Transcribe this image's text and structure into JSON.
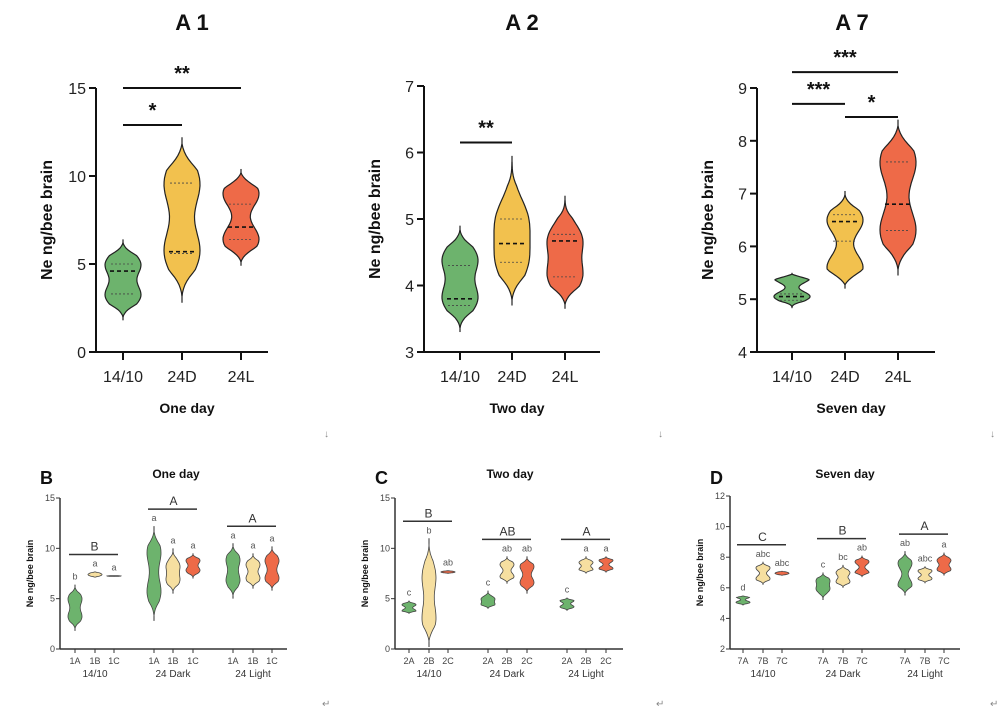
{
  "colors": {
    "green": "#6db36d",
    "yellow": "#f2c14e",
    "red": "#ee6a48",
    "cream": "#f6dfa0",
    "axis": "#111111"
  },
  "chart_data": [
    {
      "id": "A1",
      "type": "violin",
      "title": "A 1",
      "xlabel": "One day",
      "ylabel": "Ne ng/bee brain",
      "ylim": [
        0,
        15
      ],
      "yticks": [
        0,
        5,
        10,
        15
      ],
      "categories": [
        "14/10",
        "24D",
        "24L"
      ],
      "series": [
        {
          "name": "14/10",
          "color": "green",
          "min": 1.8,
          "max": 6.4,
          "median": 4.6,
          "q1": 3.3,
          "q3": 5.0,
          "modes": [
            3.2,
            5.0
          ]
        },
        {
          "name": "24D",
          "color": "yellow",
          "min": 2.8,
          "max": 12.2,
          "median": 5.7,
          "q1": 5.6,
          "q3": 9.6,
          "modes": [
            5.7,
            9.6
          ]
        },
        {
          "name": "24L",
          "color": "red",
          "min": 4.9,
          "max": 10.4,
          "median": 7.1,
          "q1": 6.4,
          "q3": 8.4,
          "modes": [
            6.4,
            9.0
          ]
        }
      ],
      "significance": [
        {
          "from": "14/10",
          "to": "24D",
          "label": "*",
          "y": 12.9
        },
        {
          "from": "14/10",
          "to": "24L",
          "label": "**",
          "y": 15.0
        }
      ]
    },
    {
      "id": "A2",
      "type": "violin",
      "title": "A 2",
      "xlabel": "Two day",
      "ylabel": "Ne ng/bee brain",
      "ylim": [
        3,
        7
      ],
      "yticks": [
        3,
        4,
        5,
        6,
        7
      ],
      "categories": [
        "14/10",
        "24D",
        "24L"
      ],
      "series": [
        {
          "name": "14/10",
          "color": "green",
          "min": 3.3,
          "max": 4.9,
          "median": 3.8,
          "q1": 3.7,
          "q3": 4.3,
          "modes": [
            3.8,
            4.4
          ]
        },
        {
          "name": "24D",
          "color": "yellow",
          "min": 3.7,
          "max": 5.95,
          "median": 4.63,
          "q1": 4.35,
          "q3": 5.0,
          "modes": [
            4.35,
            5.0
          ]
        },
        {
          "name": "24L",
          "color": "red",
          "min": 3.65,
          "max": 5.35,
          "median": 4.67,
          "q1": 4.13,
          "q3": 4.77,
          "modes": [
            4.13,
            4.7
          ]
        }
      ],
      "significance": [
        {
          "from": "14/10",
          "to": "24D",
          "label": "**",
          "y": 6.15
        }
      ]
    },
    {
      "id": "A7",
      "type": "violin",
      "title": "A 7",
      "xlabel": "Seven day",
      "ylabel": "Ne ng/bee brain",
      "ylim": [
        4,
        9
      ],
      "yticks": [
        4,
        5,
        6,
        7,
        8,
        9
      ],
      "categories": [
        "14/10",
        "24D",
        "24L"
      ],
      "series": [
        {
          "name": "14/10",
          "color": "green",
          "min": 4.83,
          "max": 5.5,
          "median": 5.05,
          "q1": 4.98,
          "q3": 5.1,
          "modes": [
            5.05,
            5.4
          ]
        },
        {
          "name": "24D",
          "color": "yellow",
          "min": 5.2,
          "max": 7.05,
          "median": 6.47,
          "q1": 6.1,
          "q3": 6.6,
          "modes": [
            5.6,
            6.5
          ]
        },
        {
          "name": "24L",
          "color": "red",
          "min": 5.45,
          "max": 8.4,
          "median": 6.8,
          "q1": 6.3,
          "q3": 7.6,
          "modes": [
            6.3,
            7.6
          ]
        }
      ],
      "significance": [
        {
          "from": "14/10",
          "to": "24L",
          "label": "***",
          "y": 9.3
        },
        {
          "from": "14/10",
          "to": "24D",
          "label": "***",
          "y": 8.7
        },
        {
          "from": "24D",
          "to": "24L",
          "label": "*",
          "y": 8.45
        }
      ]
    },
    {
      "id": "B",
      "type": "violin",
      "panel_label": "B",
      "title": "One day",
      "ylabel": "Ne ng/bee brain",
      "ylim": [
        0,
        15
      ],
      "yticks": [
        0,
        5,
        10,
        15
      ],
      "groups": [
        {
          "name": "14/10",
          "group_letter": "B",
          "items": [
            {
              "name": "1A",
              "color": "green",
              "letter": "b",
              "min": 1.8,
              "max": 6.4,
              "modes": [
                3.2,
                5.0
              ]
            },
            {
              "name": "1B",
              "color": "cream",
              "letter": "a",
              "min": 7.1,
              "max": 7.7,
              "modes": [
                7.4
              ]
            },
            {
              "name": "1C",
              "color": "red",
              "letter": "a",
              "min": 7.2,
              "max": 7.3,
              "modes": [
                7.25
              ]
            }
          ]
        },
        {
          "name": "24 Dark",
          "group_letter": "A",
          "items": [
            {
              "name": "1A",
              "color": "green",
              "letter": "a",
              "min": 2.8,
              "max": 12.2,
              "modes": [
                5.7,
                9.6
              ]
            },
            {
              "name": "1B",
              "color": "cream",
              "letter": "a",
              "min": 5.5,
              "max": 10.0,
              "modes": [
                6.8,
                8.3
              ]
            },
            {
              "name": "1C",
              "color": "red",
              "letter": "a",
              "min": 7.0,
              "max": 9.5,
              "modes": [
                7.8,
                8.8
              ]
            }
          ]
        },
        {
          "name": "24 Light",
          "group_letter": "A",
          "items": [
            {
              "name": "1A",
              "color": "green",
              "letter": "a",
              "min": 5.0,
              "max": 10.5,
              "modes": [
                6.8,
                8.9
              ]
            },
            {
              "name": "1B",
              "color": "cream",
              "letter": "a",
              "min": 6.0,
              "max": 9.5,
              "modes": [
                7.0,
                8.4
              ]
            },
            {
              "name": "1C",
              "color": "red",
              "letter": "a",
              "min": 5.8,
              "max": 10.2,
              "modes": [
                7.0,
                8.8
              ]
            }
          ]
        }
      ]
    },
    {
      "id": "C",
      "type": "violin",
      "panel_label": "C",
      "title": "Two day",
      "ylabel": "Ne ng/bee brain",
      "ylim": [
        0,
        15
      ],
      "yticks": [
        0,
        5,
        10,
        15
      ],
      "groups": [
        {
          "name": "14/10",
          "group_letter": "B",
          "items": [
            {
              "name": "2A",
              "color": "green",
              "letter": "c",
              "min": 3.5,
              "max": 4.8,
              "modes": [
                3.8,
                4.4
              ]
            },
            {
              "name": "2B",
              "color": "cream",
              "letter": "b",
              "min": 0.2,
              "max": 11.0,
              "modes": [
                3.0,
                7.2
              ]
            },
            {
              "name": "2C",
              "color": "red",
              "letter": "ab",
              "min": 7.5,
              "max": 7.8,
              "modes": [
                7.65
              ]
            }
          ]
        },
        {
          "name": "24 Dark",
          "group_letter": "AB",
          "items": [
            {
              "name": "2A",
              "color": "green",
              "letter": "c",
              "min": 4.0,
              "max": 5.8,
              "modes": [
                4.4,
                5.0
              ]
            },
            {
              "name": "2B",
              "color": "cream",
              "letter": "ab",
              "min": 6.5,
              "max": 9.2,
              "modes": [
                7.2,
                8.4
              ]
            },
            {
              "name": "2C",
              "color": "red",
              "letter": "ab",
              "min": 5.5,
              "max": 9.2,
              "modes": [
                6.6,
                8.2
              ]
            }
          ]
        },
        {
          "name": "24 Light",
          "group_letter": "A",
          "items": [
            {
              "name": "2A",
              "color": "green",
              "letter": "c",
              "min": 3.8,
              "max": 5.1,
              "modes": [
                4.2,
                4.8
              ]
            },
            {
              "name": "2B",
              "color": "cream",
              "letter": "a",
              "min": 7.5,
              "max": 9.2,
              "modes": [
                7.9,
                8.6
              ]
            },
            {
              "name": "2C",
              "color": "red",
              "letter": "a",
              "min": 7.6,
              "max": 9.2,
              "modes": [
                8.0,
                8.8
              ]
            }
          ]
        }
      ]
    },
    {
      "id": "D",
      "type": "violin",
      "panel_label": "D",
      "title": "Seven day",
      "ylabel": "Ne ng/bee brain",
      "ylim": [
        2,
        12
      ],
      "yticks": [
        2,
        4,
        6,
        8,
        10,
        12
      ],
      "groups": [
        {
          "name": "14/10",
          "group_letter": "C",
          "items": [
            {
              "name": "7A",
              "color": "green",
              "letter": "d",
              "min": 4.85,
              "max": 5.5,
              "modes": [
                5.05,
                5.4
              ]
            },
            {
              "name": "7B",
              "color": "cream",
              "letter": "abc",
              "min": 6.2,
              "max": 7.7,
              "modes": [
                6.6,
                7.3
              ]
            },
            {
              "name": "7C",
              "color": "red",
              "letter": "abc",
              "min": 6.8,
              "max": 7.1,
              "modes": [
                6.95
              ]
            }
          ]
        },
        {
          "name": "24 Dark",
          "group_letter": "B",
          "items": [
            {
              "name": "7A",
              "color": "green",
              "letter": "c",
              "min": 5.2,
              "max": 7.0,
              "modes": [
                5.9,
                6.5
              ]
            },
            {
              "name": "7B",
              "color": "cream",
              "letter": "bc",
              "min": 6.0,
              "max": 7.5,
              "modes": [
                6.4,
                7.0
              ]
            },
            {
              "name": "7C",
              "color": "red",
              "letter": "ab",
              "min": 6.7,
              "max": 8.1,
              "modes": [
                7.0,
                7.7
              ]
            }
          ]
        },
        {
          "name": "24 Light",
          "group_letter": "A",
          "items": [
            {
              "name": "7A",
              "color": "green",
              "letter": "ab",
              "min": 5.5,
              "max": 8.4,
              "modes": [
                6.2,
                7.6
              ]
            },
            {
              "name": "7B",
              "color": "cream",
              "letter": "abc",
              "min": 6.3,
              "max": 7.4,
              "modes": [
                6.6,
                7.1
              ]
            },
            {
              "name": "7C",
              "color": "red",
              "letter": "a",
              "min": 6.8,
              "max": 8.3,
              "modes": [
                7.2,
                7.8
              ]
            }
          ]
        }
      ]
    }
  ],
  "doc_marks": {
    "arrow": "↓",
    "return": "↵"
  }
}
